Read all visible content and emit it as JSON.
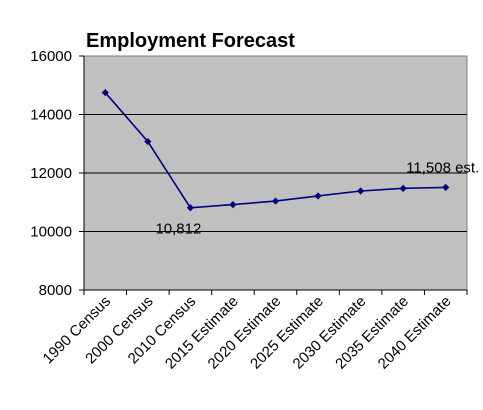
{
  "chart_data": {
    "type": "line",
    "title": "Employment Forecast",
    "categories": [
      "1990 Census",
      "2000 Census",
      "2010 Census",
      "2015 Estimate",
      "2020 Estimate",
      "2025 Estimate",
      "2030 Estimate",
      "2035 Estimate",
      "2040 Estimate"
    ],
    "series": [
      {
        "values": [
          14750,
          13075,
          10812,
          10920,
          11040,
          11215,
          11385,
          11475,
          11508
        ]
      }
    ],
    "ylim": [
      8000,
      16000
    ],
    "yticks": [
      8000,
      10000,
      12000,
      14000,
      16000
    ],
    "grid": "horizontal",
    "legend": "none",
    "annotations": [
      {
        "index": 2,
        "text": "10,812"
      },
      {
        "index": 8,
        "text": "11,508 est."
      }
    ],
    "colors": {
      "plot_area": "#c0c0c0",
      "line": "#000080",
      "marker": "#000080",
      "gridline": "#000000"
    }
  }
}
